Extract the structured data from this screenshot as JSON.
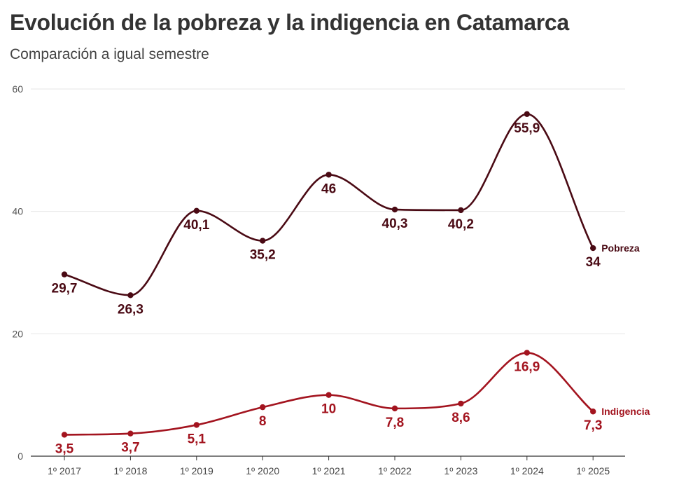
{
  "header": {
    "title": "Evolución de la pobreza y la indigencia en Catamarca",
    "subtitle": "Comparación a igual semestre"
  },
  "colors": {
    "pobreza": "#4a0a14",
    "indigencia": "#a3141f",
    "grid": "#e6e6e6",
    "axis": "#333333"
  },
  "chart_data": {
    "type": "line",
    "title": "Evolución de la pobreza y la indigencia en Catamarca",
    "subtitle": "Comparación a igual semestre",
    "xlabel": "",
    "ylabel": "",
    "categories": [
      "1º 2017",
      "1º 2018",
      "1º 2019",
      "1º 2020",
      "1º 2021",
      "1º 2022",
      "1º 2023",
      "1º 2024",
      "1º 2025"
    ],
    "ylim": [
      0,
      60
    ],
    "yticks": [
      0,
      20,
      40,
      60
    ],
    "grid": true,
    "legend": "direct labels at line ends",
    "series": [
      {
        "name": "Pobreza",
        "color": "#4a0a14",
        "values": [
          29.7,
          26.3,
          40.1,
          35.2,
          46,
          40.3,
          40.2,
          55.9,
          34
        ],
        "labels": [
          "29,7",
          "26,3",
          "40,1",
          "35,2",
          "46",
          "40,3",
          "40,2",
          "55,9",
          "34"
        ]
      },
      {
        "name": "Indigencia",
        "color": "#a3141f",
        "values": [
          3.5,
          3.7,
          5.1,
          8,
          10,
          7.8,
          8.6,
          16.9,
          7.3
        ],
        "labels": [
          "3,5",
          "3,7",
          "5,1",
          "8",
          "10",
          "7,8",
          "8,6",
          "16,9",
          "7,3"
        ]
      }
    ]
  }
}
